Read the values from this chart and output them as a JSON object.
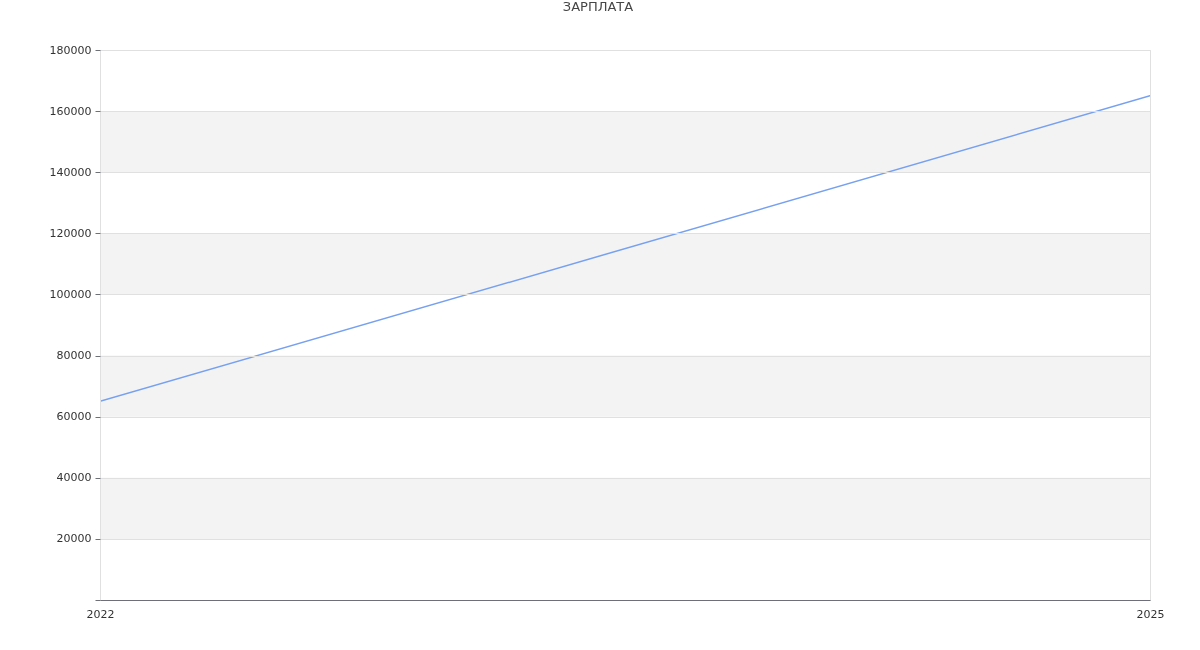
{
  "chart_data": {
    "type": "line",
    "title": "ЗАРПЛАТА",
    "x": [
      2022,
      2025
    ],
    "series": [
      {
        "color": "#76a0f0",
        "values": [
          65000,
          165000
        ]
      }
    ],
    "xlim": [
      2022,
      2025
    ],
    "xticks": [
      2022,
      2025
    ],
    "ylim": [
      0,
      180000
    ],
    "yticks": [
      {
        "value": 0,
        "label": null
      },
      20000,
      40000,
      60000,
      80000,
      100000,
      120000,
      140000,
      160000,
      180000
    ],
    "grid": true,
    "marker": "none",
    "line_style": "solid",
    "bands": [
      {
        "axis": "y",
        "from": 20000,
        "to": 40000,
        "color": "#f3f3f3"
      },
      {
        "axis": "y",
        "from": 60000,
        "to": 80000,
        "color": "#f3f3f3"
      },
      {
        "axis": "y",
        "from": 100000,
        "to": 120000,
        "color": "#f3f3f3"
      },
      {
        "axis": "y",
        "from": 140000,
        "to": 160000,
        "color": "#f3f3f3"
      }
    ]
  }
}
